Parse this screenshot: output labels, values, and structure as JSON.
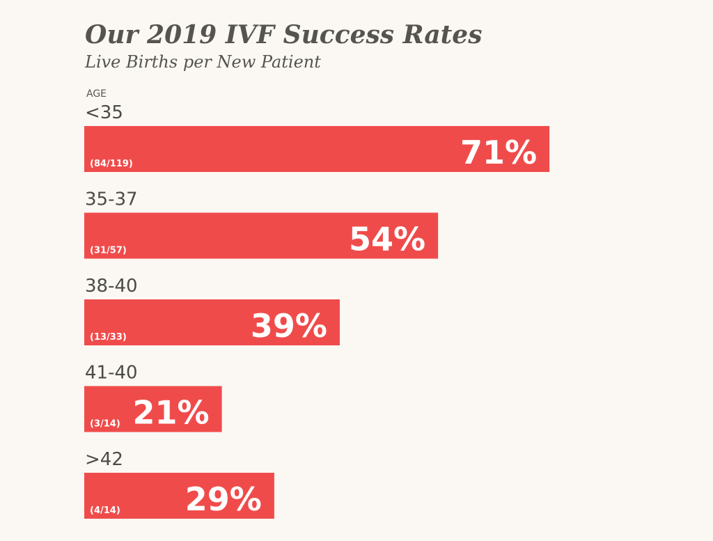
{
  "chart_data": {
    "type": "bar",
    "orientation": "horizontal",
    "title": "Our 2019 IVF Success Rates",
    "subtitle": "Live Births per New Patient",
    "axis_caption": "AGE",
    "categories": [
      "<35",
      "35-37",
      "38-40",
      "41-40",
      ">42"
    ],
    "values": [
      71,
      54,
      39,
      21,
      29
    ],
    "value_labels": [
      "71%",
      "54%",
      "39%",
      "21%",
      "29%"
    ],
    "fractions": [
      "(84/119)",
      "(31/57)",
      "(13/33)",
      "(3/14)",
      "(4/14)"
    ],
    "xlim": [
      0,
      100
    ],
    "grid": false,
    "bar_color": "#f04b4b"
  }
}
